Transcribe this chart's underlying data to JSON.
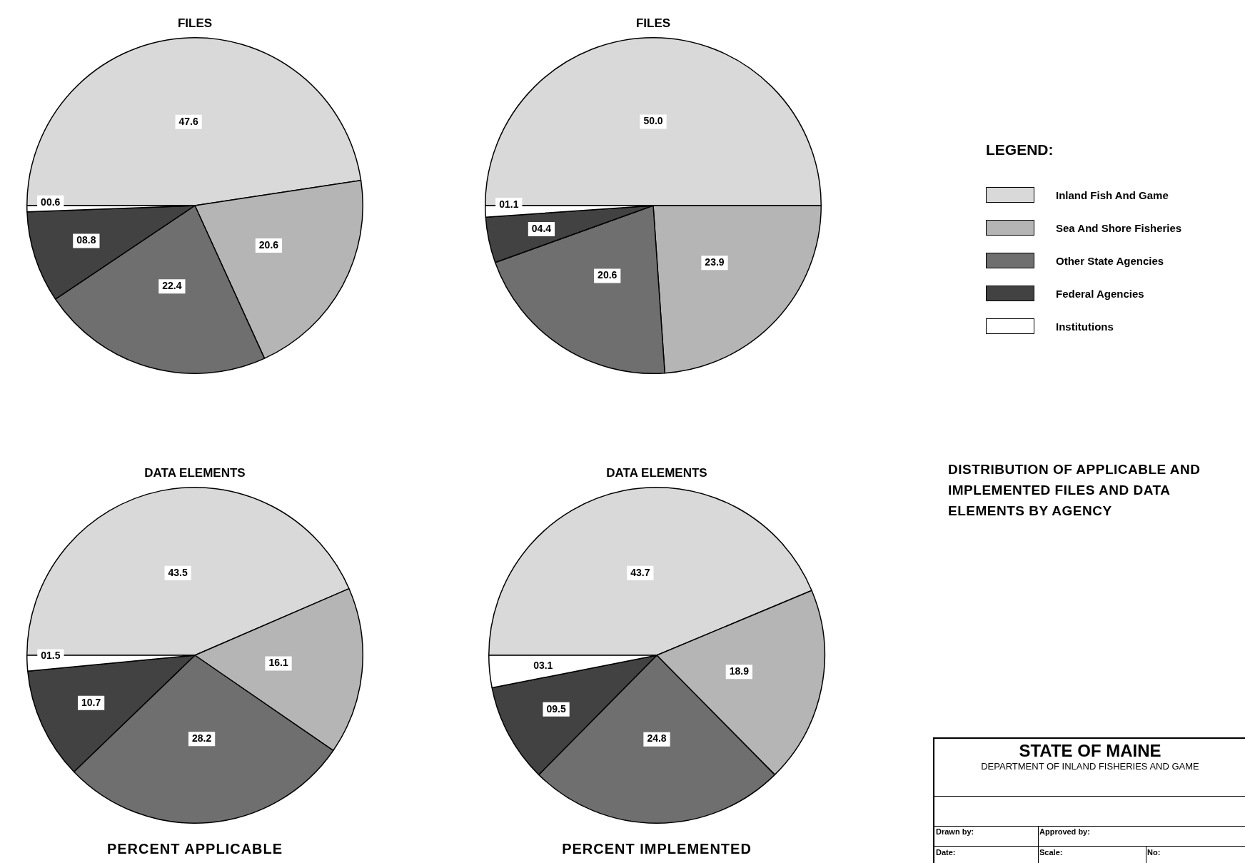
{
  "chart_data": [
    {
      "type": "pie",
      "title": "FILES",
      "categories": [
        "Inland Fish And Game",
        "Sea And Shore Fisheries",
        "Other State Agencies",
        "Federal Agencies",
        "Institutions"
      ],
      "values": [
        47.6,
        20.6,
        22.4,
        8.8,
        0.6
      ],
      "value_labels": [
        "47.6",
        "20.6",
        "22.4",
        "08.8",
        "00.6"
      ],
      "colors": [
        "#d9d9d9",
        "#b5b5b5",
        "#6f6f6f",
        "#424242",
        "#ffffff"
      ],
      "legend": "right",
      "legend_title": "LEGEND:"
    },
    {
      "type": "pie",
      "title": "FILES",
      "categories": [
        null,
        null,
        null,
        null,
        null
      ],
      "values": [
        50.0,
        23.9,
        20.6,
        4.4,
        1.1
      ],
      "value_labels": [
        "50.0",
        "23.9",
        "20.6",
        "04.4",
        "01.1"
      ],
      "colors": [
        "#d9d9d9",
        "#b5b5b5",
        "#6f6f6f",
        "#424242",
        "#ffffff"
      ]
    },
    {
      "type": "pie",
      "title": "DATA ELEMENTS",
      "categories": [
        null,
        null,
        null,
        null,
        null
      ],
      "values": [
        43.5,
        16.1,
        28.2,
        10.7,
        1.5
      ],
      "value_labels": [
        "43.5",
        "16.1",
        "28.2",
        "10.7",
        "01.5"
      ],
      "colors": [
        "#d9d9d9",
        "#b5b5b5",
        "#6f6f6f",
        "#424242",
        "#ffffff"
      ],
      "annotations": [
        "PERCENT APPLICABLE"
      ]
    },
    {
      "type": "pie",
      "title": "DATA ELEMENTS",
      "categories": [
        null,
        null,
        null,
        null,
        null
      ],
      "values": [
        43.7,
        18.9,
        24.8,
        9.5,
        3.1
      ],
      "value_labels": [
        "43.7",
        "18.9",
        "24.8",
        "09.5",
        "03.1"
      ],
      "colors": [
        "#d9d9d9",
        "#b5b5b5",
        "#6f6f6f",
        "#424242",
        "#ffffff"
      ],
      "annotations": [
        "PERCENT IMPLEMENTED"
      ]
    },
    {
      "type": "other",
      "title": "DISTRIBUTION OF APPLICABLE AND IMPLEMENTED FILES AND DATA ELEMENTS BY AGENCY",
      "annotations": [
        "STATE OF MAINE",
        "DEPARTMENT OF INLAND FISHERIES AND GAME",
        "Drawn by:",
        "Approved by:",
        "Date:",
        "Scale:",
        "No:"
      ]
    }
  ]
}
